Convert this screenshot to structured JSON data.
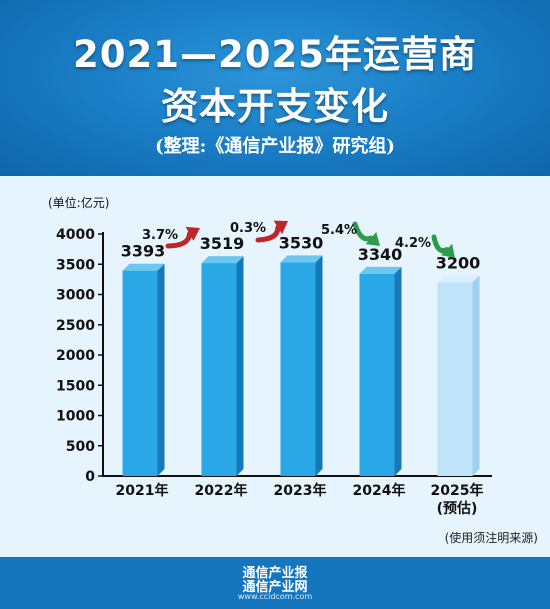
{
  "header": {
    "title_line1": "2021—2025年运营商",
    "title_line2": "资本开支变化",
    "subtitle": "(整理:《通信产业报》研究组)"
  },
  "footer": {
    "logo_line1": "通信产业报",
    "logo_line2": "通信产业网",
    "website": "www.ccidcom.com"
  },
  "colors": {
    "bar": "#2aa7e6",
    "bar_forecast": "#bfe3f8",
    "arrow_up": "#c0252a",
    "arrow_down": "#2e9b4a"
  },
  "chart_data": {
    "type": "bar",
    "unit_label": "(单位:亿元)",
    "categories": [
      "2021年",
      "2022年",
      "2023年",
      "2024年",
      "2025年"
    ],
    "category_notes": [
      "",
      "",
      "",
      "",
      "(预估)"
    ],
    "values": [
      3393,
      3519,
      3530,
      3340,
      3200
    ],
    "value_labels": [
      "3393",
      "3519",
      "3530",
      "3340",
      "3200"
    ],
    "forecast": [
      false,
      false,
      false,
      false,
      true
    ],
    "changes": [
      {
        "label": "3.7%",
        "direction": "up"
      },
      {
        "label": "0.3%",
        "direction": "up"
      },
      {
        "label": "5.4%",
        "direction": "down"
      },
      {
        "label": "4.2%",
        "direction": "down"
      }
    ],
    "ylim": [
      0,
      4000
    ],
    "yticks": [
      0,
      500,
      1000,
      1500,
      2000,
      2500,
      3000,
      3500,
      4000
    ],
    "note": "(使用须注明来源)",
    "grid": false,
    "legend": "none"
  }
}
